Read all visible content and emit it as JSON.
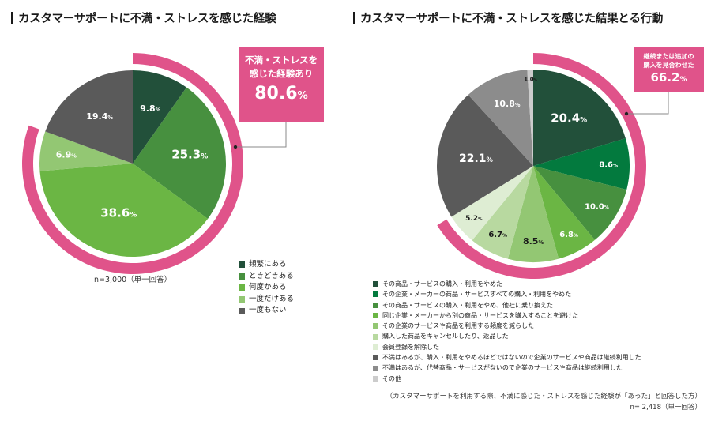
{
  "chart_data": [
    {
      "type": "pie",
      "title": "カスタマーサポートに不満・ストレスを感じた経験",
      "categories": [
        "頻繁にある",
        "ときどきある",
        "何度かある",
        "一度だけある",
        "一度もない"
      ],
      "values": [
        9.8,
        25.3,
        38.6,
        6.9,
        19.4
      ],
      "value_labels": [
        "9.8",
        "25.3",
        "38.6",
        "6.9",
        "19.4"
      ],
      "unit": "%",
      "colors": [
        "#22503a",
        "#47903f",
        "#6bb644",
        "#93c773",
        "#5a5a5a"
      ],
      "label_colors": [
        "#ffffff",
        "#ffffff",
        "#ffffff",
        "#ffffff",
        "#ffffff"
      ],
      "start_angle": "top",
      "direction": "clockwise",
      "highlight": {
        "label": "不満・ストレスを感じた経験あり",
        "value": 80.6,
        "value_label": "80.6",
        "covers_categories": [
          0,
          1,
          2,
          3
        ],
        "color": "#e0538a"
      },
      "legend_position": "bottom-right",
      "note": "n=3,000（単一回答）"
    },
    {
      "type": "pie",
      "title": "カスタマーサポートに不満・ストレスを感じた結果とる行動",
      "categories": [
        "その商品・サービスの購入・利用をやめた",
        "その企業・メーカーの商品・サービスすべての購入・利用をやめた",
        "その商品・サービスの購入・利用をやめ、他社に乗り換えた",
        "同じ企業・メーカーから別の商品・サービスを購入することを避けた",
        "その企業のサービスや商品を利用する頻度を減らした",
        "購入した商品をキャンセルしたり、返品した",
        "会員登録を解除した",
        "不満はあるが、購入・利用をやめるほどではないので企業のサービスや商品は継続利用した",
        "不満はあるが、代替商品・サービスがないので企業のサービスや商品は継続利用した",
        "その他"
      ],
      "values": [
        20.4,
        8.6,
        10.0,
        6.8,
        8.5,
        6.7,
        5.2,
        22.1,
        10.8,
        1.0
      ],
      "value_labels": [
        "20.4",
        "8.6",
        "10.0",
        "6.8",
        "8.5",
        "6.7",
        "5.2",
        "22.1",
        "10.8",
        "1.0"
      ],
      "unit": "%",
      "colors": [
        "#22503a",
        "#037a3e",
        "#47903f",
        "#6bb644",
        "#93c773",
        "#b8d9a0",
        "#deedd3",
        "#5a5a5a",
        "#8c8c8c",
        "#cccccc"
      ],
      "label_colors": [
        "#ffffff",
        "#ffffff",
        "#ffffff",
        "#ffffff",
        "#1a1a1a",
        "#1a1a1a",
        "#1a1a1a",
        "#ffffff",
        "#ffffff",
        "#1a1a1a"
      ],
      "start_angle": "top",
      "direction": "clockwise",
      "highlight": {
        "label": "継続または追加の購入を見合わせた",
        "value": 66.2,
        "value_label": "66.2",
        "covers_categories": [
          0,
          1,
          2,
          3,
          4,
          5,
          6
        ],
        "color": "#e0538a"
      },
      "legend_position": "bottom",
      "note": "（カスタマーサポートを利用する際、不満に感じた・ストレスを感じた経験が「あった」と回答した方）",
      "n_label": "n= 2,418（単一回答）"
    }
  ],
  "left": {
    "title": "カスタマーサポートに不満・ストレスを感じた経験",
    "callout_text_1": "不満・ストレスを",
    "callout_text_2": "感じた経験あり",
    "callout_value": "80.6",
    "pct": "%",
    "n_label": "n=3,000（単一回答）"
  },
  "right": {
    "title": "カスタマーサポートに不満・ストレスを感じた結果とる行動",
    "callout_text_1": "継続または追加の",
    "callout_text_2": "購入を見合わせた",
    "callout_value": "66.2",
    "pct": "%",
    "note": "（カスタマーサポートを利用する際、不満に感じた・ストレスを感じた経験が「あった」と回答した方）",
    "n_label": "n= 2,418（単一回答）"
  }
}
